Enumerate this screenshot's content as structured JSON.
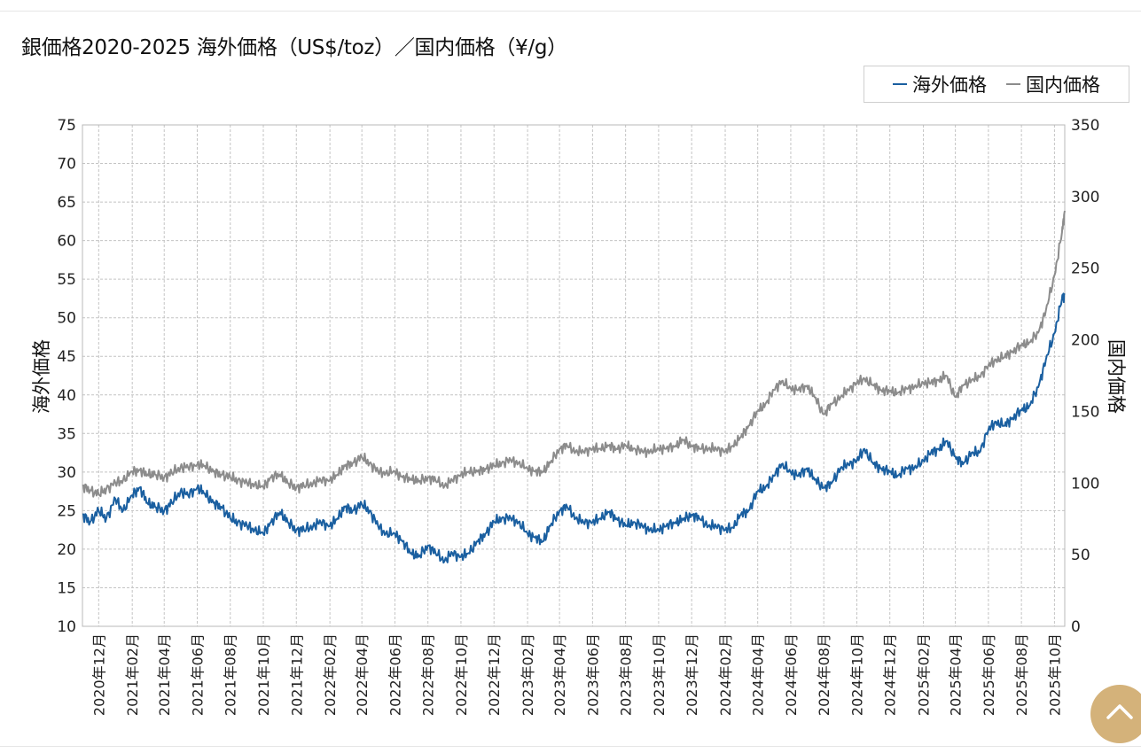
{
  "title": "銀価格2020-2025 海外価格（US$/toz）／国内価格（¥/g）",
  "colors": {
    "overseas": "#1a5fa0",
    "domestic": "#8c8c8c",
    "grid": "#c4c4c4",
    "scroll_button": "#d4b27a"
  },
  "legend": [
    {
      "label": "海外価格",
      "color": "#1a5fa0"
    },
    {
      "label": "国内価格",
      "color": "#8c8c8c"
    }
  ],
  "scroll_top_icon": "chevron-up-icon",
  "chart_data": {
    "type": "line",
    "title": "銀価格2020-2025 海外価格（US$/toz）／国内価格（¥/g）",
    "ylabel_left": "海外価格",
    "ylabel_right": "国内価格",
    "ylim_left": [
      10,
      75
    ],
    "ylim_right": [
      0,
      350
    ],
    "yticks_left": [
      "10",
      "15",
      "20",
      "25",
      "30",
      "35",
      "40",
      "45",
      "50",
      "55",
      "60",
      "65",
      "70",
      "75"
    ],
    "yticks_right": [
      "0",
      "50",
      "100",
      "150",
      "200",
      "250",
      "300",
      "350"
    ],
    "xticks": [
      "2020年12月",
      "2021年02月",
      "2021年04月",
      "2021年06月",
      "2021年08月",
      "2021年10月",
      "2021年12月",
      "2022年02月",
      "2022年04月",
      "2022年06月",
      "2022年08月",
      "2022年10月",
      "2022年12月",
      "2023年02月",
      "2023年04月",
      "2023年06月",
      "2023年08月",
      "2023年10月",
      "2023年12月",
      "2024年02月",
      "2024年04月",
      "2024年06月",
      "2024年08月",
      "2024年10月",
      "2024年12月",
      "2025年02月",
      "2025年04月",
      "2025年06月",
      "2025年08月",
      "2025年10月"
    ],
    "x_start": "2020-11-01",
    "x_end": "2025-10-20",
    "grid": true,
    "legend_position": "top-right",
    "series": [
      {
        "name": "海外価格",
        "axis": "left",
        "color": "#1a5fa0",
        "x": [
          "2020-11-01",
          "2020-11-15",
          "2020-12-01",
          "2020-12-15",
          "2021-01-01",
          "2021-01-15",
          "2021-02-01",
          "2021-02-15",
          "2021-03-01",
          "2021-03-15",
          "2021-04-01",
          "2021-04-15",
          "2021-05-01",
          "2021-05-15",
          "2021-06-01",
          "2021-06-15",
          "2021-07-01",
          "2021-07-15",
          "2021-08-01",
          "2021-08-15",
          "2021-09-01",
          "2021-09-15",
          "2021-10-01",
          "2021-10-15",
          "2021-11-01",
          "2021-11-15",
          "2021-12-01",
          "2021-12-15",
          "2022-01-01",
          "2022-01-15",
          "2022-02-01",
          "2022-02-15",
          "2022-03-01",
          "2022-03-15",
          "2022-04-01",
          "2022-04-15",
          "2022-05-01",
          "2022-05-15",
          "2022-06-01",
          "2022-06-15",
          "2022-07-01",
          "2022-07-15",
          "2022-08-01",
          "2022-08-15",
          "2022-09-01",
          "2022-09-15",
          "2022-10-01",
          "2022-10-15",
          "2022-11-01",
          "2022-11-15",
          "2022-12-01",
          "2022-12-15",
          "2023-01-01",
          "2023-01-15",
          "2023-02-01",
          "2023-02-15",
          "2023-03-01",
          "2023-03-15",
          "2023-04-01",
          "2023-04-15",
          "2023-05-01",
          "2023-05-15",
          "2023-06-01",
          "2023-06-15",
          "2023-07-01",
          "2023-07-15",
          "2023-08-01",
          "2023-08-15",
          "2023-09-01",
          "2023-09-15",
          "2023-10-01",
          "2023-10-15",
          "2023-11-01",
          "2023-11-15",
          "2023-12-01",
          "2023-12-15",
          "2024-01-01",
          "2024-01-15",
          "2024-02-01",
          "2024-02-15",
          "2024-03-01",
          "2024-03-15",
          "2024-04-01",
          "2024-04-15",
          "2024-05-01",
          "2024-05-15",
          "2024-06-01",
          "2024-06-15",
          "2024-07-01",
          "2024-07-15",
          "2024-08-01",
          "2024-08-15",
          "2024-09-01",
          "2024-09-15",
          "2024-10-01",
          "2024-10-15",
          "2024-11-01",
          "2024-11-15",
          "2024-12-01",
          "2024-12-15",
          "2025-01-01",
          "2025-01-15",
          "2025-02-01",
          "2025-02-15",
          "2025-03-01",
          "2025-03-15",
          "2025-04-01",
          "2025-04-15",
          "2025-05-01",
          "2025-05-15",
          "2025-06-01",
          "2025-06-15",
          "2025-07-01",
          "2025-07-15",
          "2025-08-01",
          "2025-08-15",
          "2025-09-01",
          "2025-09-15",
          "2025-10-01",
          "2025-10-15",
          "2025-10-20"
        ],
        "values": [
          24.5,
          23.5,
          25.0,
          24.0,
          26.5,
          25.0,
          27.0,
          28.0,
          26.0,
          25.5,
          25.0,
          26.0,
          27.5,
          27.0,
          28.0,
          27.2,
          26.0,
          25.5,
          24.0,
          23.5,
          23.0,
          22.5,
          22.0,
          23.5,
          24.8,
          23.5,
          22.5,
          22.5,
          23.0,
          23.5,
          23.0,
          24.0,
          25.5,
          25.0,
          25.8,
          25.0,
          23.0,
          22.0,
          22.0,
          21.0,
          19.5,
          19.0,
          20.5,
          19.5,
          18.5,
          19.5,
          19.0,
          19.5,
          21.0,
          22.0,
          23.5,
          24.0,
          24.0,
          23.5,
          22.0,
          21.5,
          21.0,
          23.0,
          25.0,
          25.5,
          24.0,
          23.5,
          23.5,
          24.0,
          24.8,
          24.0,
          23.0,
          23.5,
          23.0,
          22.5,
          22.5,
          23.0,
          23.5,
          23.8,
          24.5,
          24.0,
          23.0,
          23.0,
          22.5,
          22.8,
          24.5,
          25.0,
          27.5,
          28.0,
          29.5,
          31.0,
          30.0,
          29.5,
          30.5,
          29.0,
          28.0,
          28.5,
          30.5,
          31.0,
          31.5,
          33.0,
          31.0,
          30.5,
          30.0,
          29.5,
          30.5,
          30.5,
          31.5,
          32.5,
          33.0,
          34.0,
          32.0,
          31.0,
          32.5,
          32.5,
          35.5,
          36.5,
          36.0,
          37.0,
          38.0,
          38.5,
          41.0,
          44.5,
          48.0,
          52.5,
          53.0
        ]
      },
      {
        "name": "国内価格",
        "axis": "right",
        "color": "#8c8c8c",
        "x": [
          "2020-11-01",
          "2020-11-15",
          "2020-12-01",
          "2020-12-15",
          "2021-01-01",
          "2021-01-15",
          "2021-02-01",
          "2021-02-15",
          "2021-03-01",
          "2021-03-15",
          "2021-04-01",
          "2021-04-15",
          "2021-05-01",
          "2021-05-15",
          "2021-06-01",
          "2021-06-15",
          "2021-07-01",
          "2021-07-15",
          "2021-08-01",
          "2021-08-15",
          "2021-09-01",
          "2021-09-15",
          "2021-10-01",
          "2021-10-15",
          "2021-11-01",
          "2021-11-15",
          "2021-12-01",
          "2021-12-15",
          "2022-01-01",
          "2022-01-15",
          "2022-02-01",
          "2022-02-15",
          "2022-03-01",
          "2022-03-15",
          "2022-04-01",
          "2022-04-15",
          "2022-05-01",
          "2022-05-15",
          "2022-06-01",
          "2022-06-15",
          "2022-07-01",
          "2022-07-15",
          "2022-08-01",
          "2022-08-15",
          "2022-09-01",
          "2022-09-15",
          "2022-10-01",
          "2022-10-15",
          "2022-11-01",
          "2022-11-15",
          "2022-12-01",
          "2022-12-15",
          "2023-01-01",
          "2023-01-15",
          "2023-02-01",
          "2023-02-15",
          "2023-03-01",
          "2023-03-15",
          "2023-04-01",
          "2023-04-15",
          "2023-05-01",
          "2023-05-15",
          "2023-06-01",
          "2023-06-15",
          "2023-07-01",
          "2023-07-15",
          "2023-08-01",
          "2023-08-15",
          "2023-09-01",
          "2023-09-15",
          "2023-10-01",
          "2023-10-15",
          "2023-11-01",
          "2023-11-15",
          "2023-12-01",
          "2023-12-15",
          "2024-01-01",
          "2024-01-15",
          "2024-02-01",
          "2024-02-15",
          "2024-03-01",
          "2024-03-15",
          "2024-04-01",
          "2024-04-15",
          "2024-05-01",
          "2024-05-15",
          "2024-06-01",
          "2024-06-15",
          "2024-07-01",
          "2024-07-15",
          "2024-08-01",
          "2024-08-15",
          "2024-09-01",
          "2024-09-15",
          "2024-10-01",
          "2024-10-15",
          "2024-11-01",
          "2024-11-15",
          "2024-12-01",
          "2024-12-15",
          "2025-01-01",
          "2025-01-15",
          "2025-02-01",
          "2025-02-15",
          "2025-03-01",
          "2025-03-15",
          "2025-04-01",
          "2025-04-15",
          "2025-05-01",
          "2025-05-15",
          "2025-06-01",
          "2025-06-15",
          "2025-07-01",
          "2025-07-15",
          "2025-08-01",
          "2025-08-15",
          "2025-09-01",
          "2025-09-15",
          "2025-10-01",
          "2025-10-15",
          "2025-10-20"
        ],
        "values": [
          98,
          95,
          92,
          96,
          100,
          102,
          108,
          109,
          106,
          106,
          104,
          107,
          111,
          111,
          113,
          112,
          108,
          106,
          104,
          102,
          100,
          99,
          97,
          104,
          106,
          100,
          97,
          98,
          100,
          102,
          102,
          106,
          112,
          114,
          118,
          114,
          108,
          107,
          108,
          104,
          103,
          101,
          104,
          102,
          98,
          102,
          106,
          108,
          108,
          110,
          112,
          114,
          116,
          114,
          110,
          108,
          108,
          114,
          124,
          126,
          122,
          122,
          124,
          124,
          126,
          124,
          126,
          124,
          122,
          122,
          124,
          124,
          126,
          130,
          126,
          124,
          124,
          124,
          122,
          126,
          132,
          140,
          150,
          155,
          165,
          171,
          166,
          165,
          168,
          160,
          148,
          155,
          160,
          165,
          170,
          173,
          168,
          165,
          164,
          163,
          166,
          167,
          170,
          170,
          172,
          175,
          160,
          168,
          172,
          174,
          182,
          186,
          188,
          192,
          196,
          198,
          205,
          220,
          245,
          275,
          290
        ]
      }
    ]
  }
}
